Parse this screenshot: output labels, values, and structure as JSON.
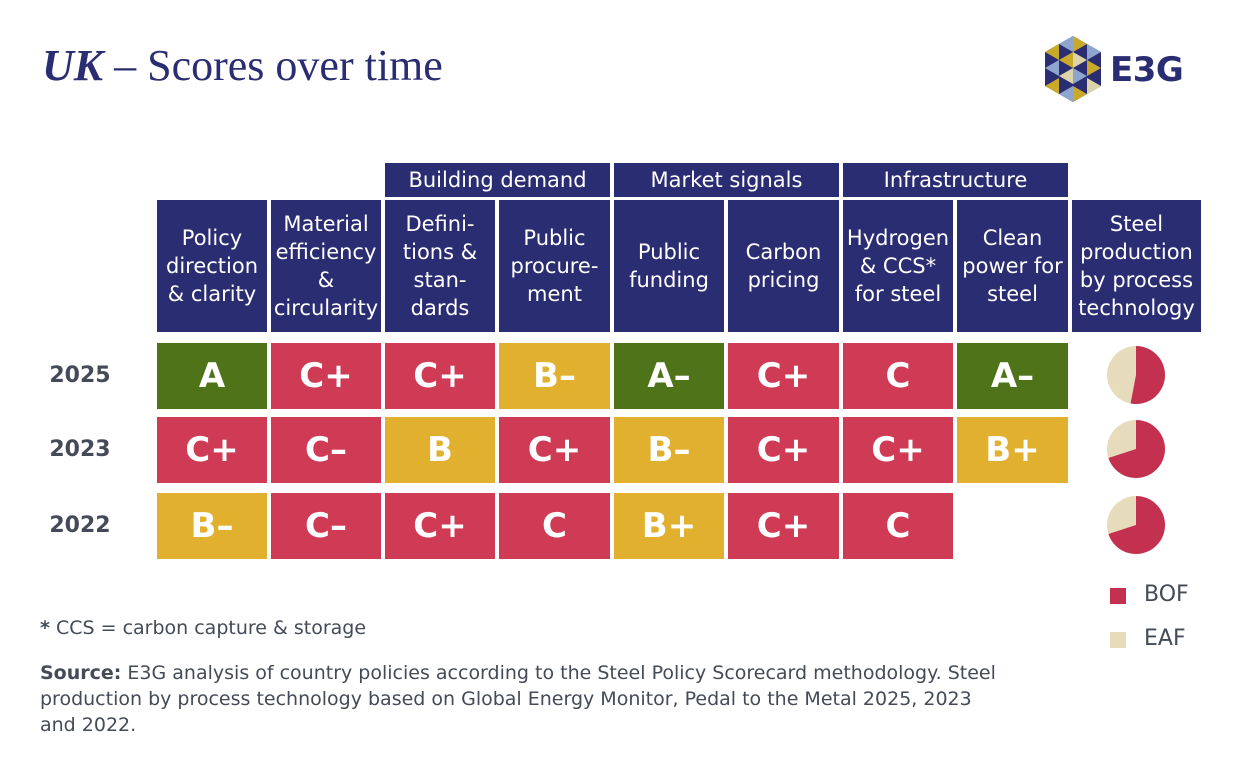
{
  "header": {
    "title_country": "UK",
    "title_rest": " – Scores over time",
    "logo_text": "E3G"
  },
  "chart_data": {
    "type": "table",
    "group_headers": [
      {
        "label": "Building demand",
        "span": [
          2,
          3
        ]
      },
      {
        "label": "Market signals",
        "span": [
          4,
          5
        ]
      },
      {
        "label": "Infrastructure",
        "span": [
          6,
          7
        ]
      }
    ],
    "columns": [
      "Policy\ndirection\n& clarity",
      "Material\nefficiency\n&\ncircularity",
      "Defini-\ntions &\nstan-\ndards",
      "Public\nprocure-\nment",
      "Public\nfunding",
      "Carbon\npricing",
      "Hydrogen\n& CCS*\nfor steel",
      "Clean\npower for\nsteel",
      "Steel\nproduction\nby process\ntechnology"
    ],
    "rows": [
      {
        "year": "2025",
        "scores": [
          "A",
          "C+",
          "C+",
          "B–",
          "A–",
          "C+",
          "C",
          "A–"
        ],
        "bof_share": 0.53,
        "eaf_share": 0.47
      },
      {
        "year": "2023",
        "scores": [
          "C+",
          "C–",
          "B",
          "C+",
          "B–",
          "C+",
          "C+",
          "B+"
        ],
        "bof_share": 0.7,
        "eaf_share": 0.3
      },
      {
        "year": "2022",
        "scores": [
          "B–",
          "C–",
          "C+",
          "C",
          "B+",
          "C+",
          "C",
          ""
        ],
        "bof_share": 0.7,
        "eaf_share": 0.3
      }
    ],
    "grade_colors": {
      "A": "#4f7319",
      "A–": "#4f7319",
      "B+": "#e0b02e",
      "B": "#e0b02e",
      "B–": "#e0b02e",
      "C+": "#cf3a54",
      "C": "#cf3a54",
      "C–": "#cf3a54"
    },
    "legend": [
      {
        "label": "BOF",
        "color": "#c43150"
      },
      {
        "label": "EAF",
        "color": "#e6dcbc"
      }
    ]
  },
  "footnote": {
    "marker": "*",
    "text": " CCS = carbon capture & storage"
  },
  "source": {
    "label": "Source:",
    "text": " E3G analysis of country policies according to the Steel Policy Scorecard methodology. Steel production by process technology based on Global Energy Monitor, Pedal to the Metal 2025, 2023 and 2022."
  }
}
